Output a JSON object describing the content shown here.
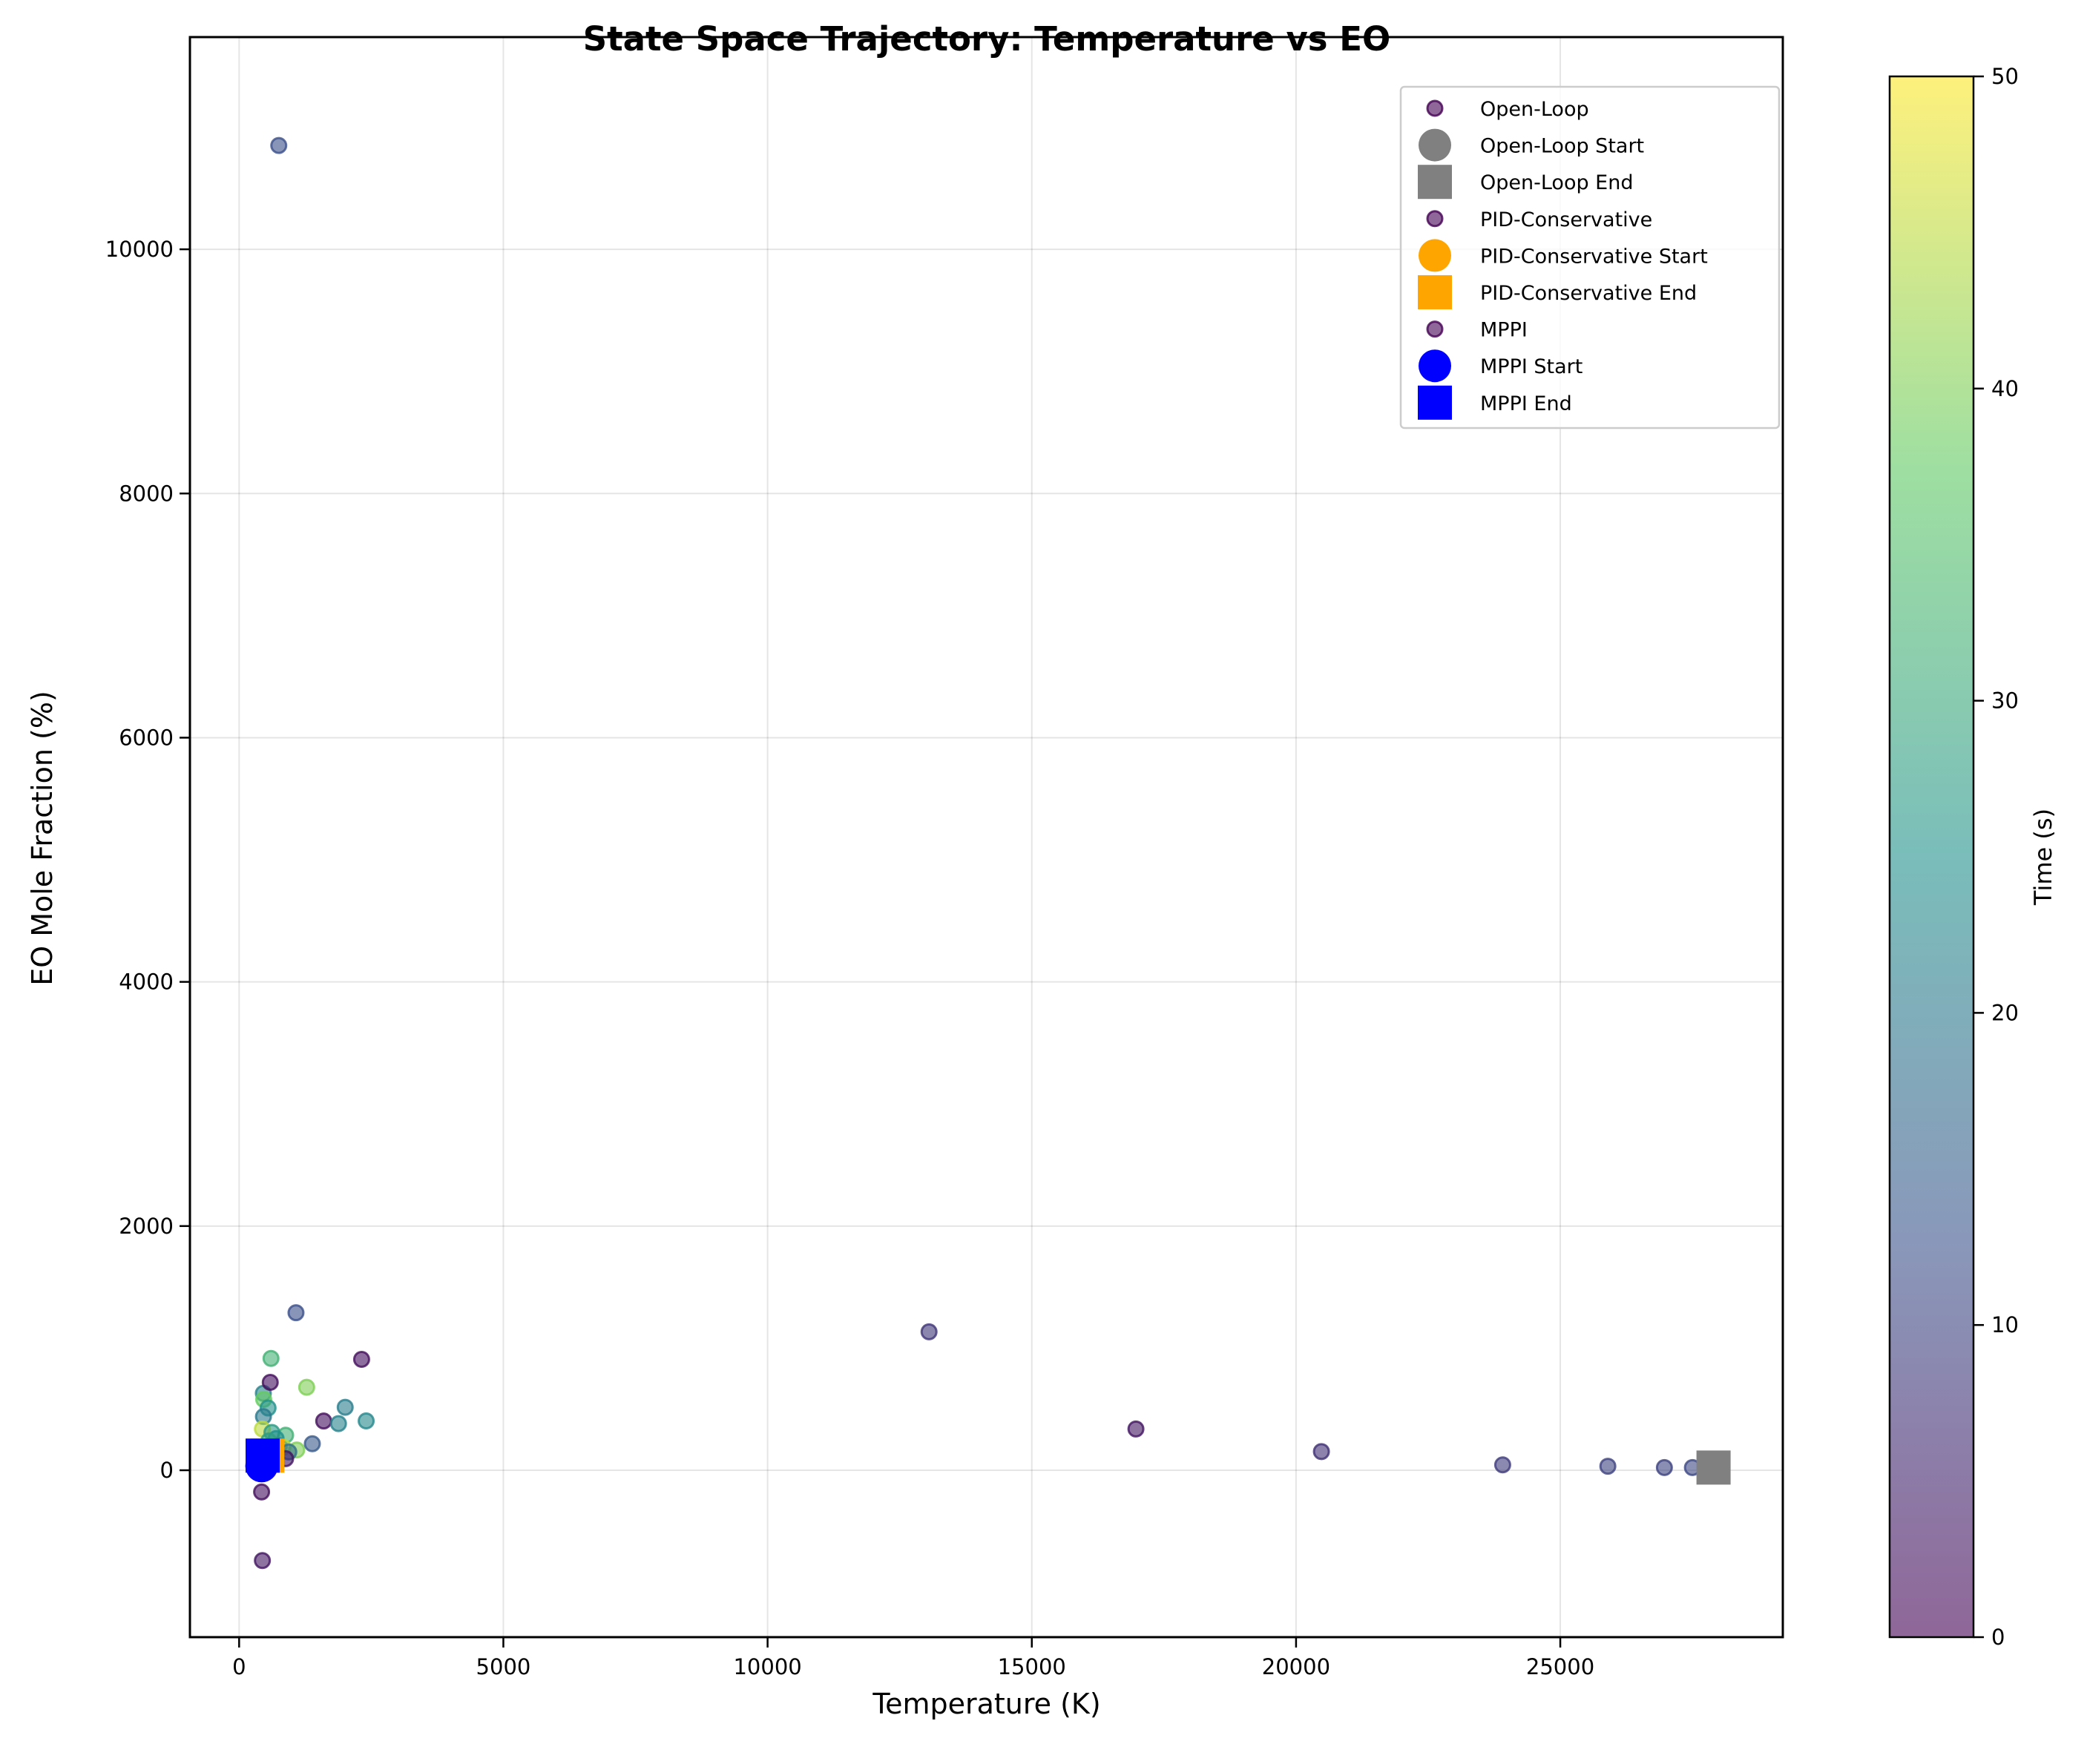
{
  "chart_data": {
    "type": "scatter",
    "title": "State Space Trajectory: Temperature vs EO",
    "xlabel": "Temperature (K)",
    "ylabel": "EO Mole Fraction (%)",
    "xlim": [
      -931,
      29211
    ],
    "ylim": [
      -1367,
      11738
    ],
    "xticks": [
      0,
      5000,
      10000,
      15000,
      20000,
      25000
    ],
    "yticks": [
      0,
      2000,
      4000,
      6000,
      8000,
      10000
    ],
    "grid": true,
    "legend_placement": "top-right",
    "colorbar": {
      "label": "Time (s)",
      "colormap": "viridis",
      "range": [
        0,
        50
      ],
      "ticks": [
        0,
        10,
        20,
        30,
        40,
        50
      ]
    },
    "series": [
      {
        "name": "Open-Loop",
        "marker": "circle",
        "points": [
          {
            "x": 13055,
            "y": 1134,
            "t": 8
          },
          {
            "x": 16970,
            "y": 338,
            "t": 3
          },
          {
            "x": 20480,
            "y": 153,
            "t": 7
          },
          {
            "x": 23910,
            "y": 44,
            "t": 9
          },
          {
            "x": 25900,
            "y": 33,
            "t": 10
          },
          {
            "x": 26970,
            "y": 22,
            "t": 10
          },
          {
            "x": 27500,
            "y": 22,
            "t": 11
          },
          {
            "x": 750,
            "y": 10850,
            "t": 12
          }
        ]
      },
      {
        "name": "PID-Conservative",
        "marker": "circle",
        "points": [
          {
            "x": 603,
            "y": 916,
            "t": 32
          },
          {
            "x": 1278,
            "y": 680,
            "t": 40
          },
          {
            "x": 458,
            "y": 630,
            "t": 22
          },
          {
            "x": 465,
            "y": 580,
            "t": 38
          },
          {
            "x": 548,
            "y": 510,
            "t": 25
          },
          {
            "x": 460,
            "y": 440,
            "t": 20
          },
          {
            "x": 440,
            "y": 338,
            "t": 45
          },
          {
            "x": 880,
            "y": 287,
            "t": 32
          },
          {
            "x": 620,
            "y": 310,
            "t": 27
          },
          {
            "x": 700,
            "y": 260,
            "t": 25
          },
          {
            "x": 560,
            "y": 240,
            "t": 28
          },
          {
            "x": 760,
            "y": 200,
            "t": 20
          },
          {
            "x": 832,
            "y": 188,
            "t": 45
          },
          {
            "x": 1090,
            "y": 166,
            "t": 40
          },
          {
            "x": 940,
            "y": 150,
            "t": 18
          },
          {
            "x": 880,
            "y": 95,
            "t": 3
          }
        ]
      },
      {
        "name": "MPPI",
        "marker": "circle",
        "points": [
          {
            "x": 1076,
            "y": 1290,
            "t": 12
          },
          {
            "x": 2318,
            "y": 908,
            "t": 2
          },
          {
            "x": 589,
            "y": 720,
            "t": 2
          },
          {
            "x": 2007,
            "y": 516,
            "t": 21
          },
          {
            "x": 1600,
            "y": 403,
            "t": 2
          },
          {
            "x": 1880,
            "y": 382,
            "t": 22
          },
          {
            "x": 2404,
            "y": 404,
            "t": 23
          },
          {
            "x": 1385,
            "y": 217,
            "t": 14
          },
          {
            "x": 650,
            "y": 180,
            "t": 30
          },
          {
            "x": 425,
            "y": -178,
            "t": 2
          },
          {
            "x": 440,
            "y": -740,
            "t": 3
          }
        ]
      }
    ],
    "markers": [
      {
        "name": "Open-Loop Start",
        "shape": "circle",
        "color": "#808080",
        "x": 430,
        "y": 35
      },
      {
        "name": "Open-Loop End",
        "shape": "square",
        "color": "#808080",
        "x": 27900,
        "y": 22
      },
      {
        "name": "PID-Conservative Start",
        "shape": "circle",
        "color": "#FFA500",
        "x": 430,
        "y": 35
      },
      {
        "name": "PID-Conservative End",
        "shape": "square",
        "color": "#FFA500",
        "x": 533,
        "y": 120
      },
      {
        "name": "MPPI Start",
        "shape": "circle",
        "color": "#0000FF",
        "x": 425,
        "y": 35
      },
      {
        "name": "MPPI End",
        "shape": "square",
        "color": "#0000FF",
        "x": 445,
        "y": 120
      }
    ],
    "legend": [
      "Open-Loop",
      "Open-Loop Start",
      "Open-Loop End",
      "PID-Conservative",
      "PID-Conservative Start",
      "PID-Conservative End",
      "MPPI",
      "MPPI Start",
      "MPPI End"
    ]
  }
}
